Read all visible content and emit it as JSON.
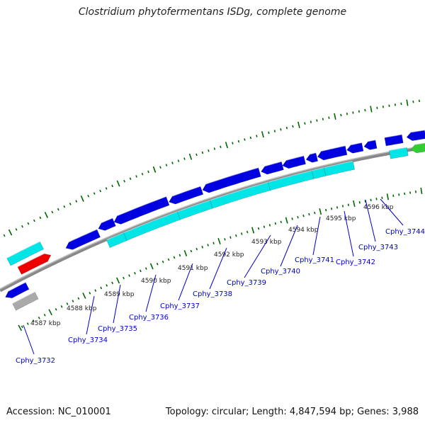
{
  "title": "Clostridium phytofermentans ISDg, complete genome",
  "footer": {
    "accession": "Accession: NC_010001",
    "summary": "Topology: circular; Length: 4,847,594 bp; Genes: 3,988"
  },
  "colors": {
    "gene_forward": "#0000e0",
    "gene_reverse": "#0000e0",
    "cds": "#00e6e6",
    "rna": "#ee0000",
    "other": "#33cc33",
    "pseudo": "#aaaaaa",
    "backbone": "#777777",
    "tick": "#006600"
  },
  "kbp_labels": [
    "4587 kbp",
    "4588 kbp",
    "4589 kbp",
    "4590 kbp",
    "4591 kbp",
    "4592 kbp",
    "4593 kbp",
    "4594 kbp",
    "4595 kbp",
    "4596 kbp"
  ],
  "gene_labels": [
    "Cphy_3732",
    "Cphy_3734",
    "Cphy_3735",
    "Cphy_3736",
    "Cphy_3737",
    "Cphy_3738",
    "Cphy_3739",
    "Cphy_3740",
    "Cphy_3741",
    "Cphy_3742",
    "Cphy_3743",
    "Cphy_3744"
  ]
}
